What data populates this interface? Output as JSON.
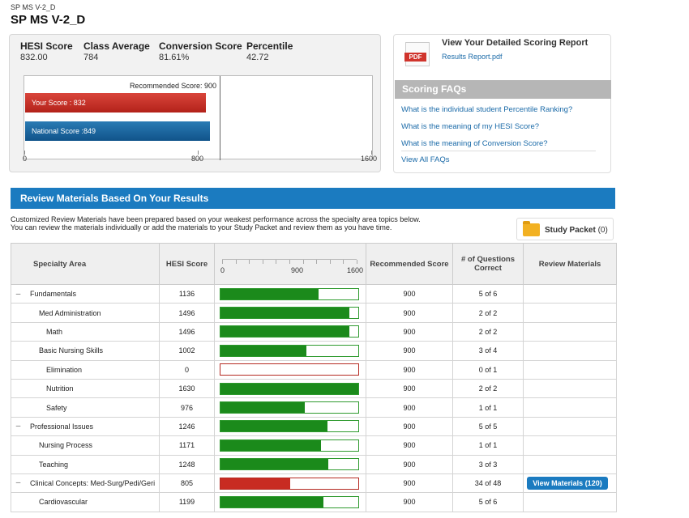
{
  "breadcrumb": "SP MS V-2_D",
  "page_title": "SP MS V-2_D",
  "summary": {
    "metrics": [
      {
        "label": "HESI Score",
        "value": "832.00"
      },
      {
        "label": "Class Average",
        "value": "784"
      },
      {
        "label": "Conversion Score",
        "value": "81.61%"
      },
      {
        "label": "Percentile",
        "value": "42.72"
      }
    ],
    "chart": {
      "recommended_label": "Recommended Score: 900",
      "recommended": 900,
      "your_score_label": "Your Score : 832",
      "your_score": 832,
      "national_score_label": "National Score :849",
      "national_score": 849,
      "axis_min": 0,
      "axis_max": 1600,
      "ticks": [
        "0",
        "800",
        "1600"
      ],
      "colors": {
        "your_score": "#c02a20",
        "national_score": "#1a65a0"
      }
    }
  },
  "report": {
    "pdf_tag": "PDF",
    "title": "View Your Detailed Scoring Report",
    "link": "Results Report.pdf"
  },
  "faqs": {
    "header": "Scoring FAQs",
    "links": [
      "What is the individual student Percentile Ranking?",
      "What is the meaning of my HESI Score?",
      "What is the meaning of Conversion Score?"
    ],
    "view_all": "View All FAQs"
  },
  "review": {
    "header": "Review Materials Based On Your Results",
    "desc_line1": "Customized Review Materials have been prepared based on your weakest performance across the specialty area topics below.",
    "desc_line2": "You can review the materials individually or add the materials to your Study Packet and review them as you have time.",
    "study_packet_label": "Study Packet",
    "study_packet_count": "(0)",
    "columns": {
      "area": "Specialty Area",
      "score": "HESI Score",
      "scale_ticks": [
        "0",
        "900",
        "1600"
      ],
      "recommended": "Recommended Score",
      "questions": "# of Questions Correct",
      "materials": "Review Materials"
    },
    "scale_max": 1600,
    "rows": [
      {
        "toggle": "–",
        "area": "Fundamentals",
        "indent": 0,
        "score": "1136",
        "value": 1136,
        "rec": "900",
        "correct": "5 of 6"
      },
      {
        "toggle": "",
        "area": "Med Administration",
        "indent": 1,
        "score": "1496",
        "value": 1496,
        "rec": "900",
        "correct": "2 of 2"
      },
      {
        "toggle": "",
        "area": "Math",
        "indent": 2,
        "score": "1496",
        "value": 1496,
        "rec": "900",
        "correct": "2 of 2"
      },
      {
        "toggle": "",
        "area": "Basic Nursing Skills",
        "indent": 1,
        "score": "1002",
        "value": 1002,
        "rec": "900",
        "correct": "3 of 4"
      },
      {
        "toggle": "",
        "area": "Elimination",
        "indent": 2,
        "score": "0",
        "value": 0,
        "rec": "900",
        "correct": "0 of 1"
      },
      {
        "toggle": "",
        "area": "Nutrition",
        "indent": 2,
        "score": "1630",
        "value": 1630,
        "rec": "900",
        "correct": "2 of 2"
      },
      {
        "toggle": "",
        "area": "Safety",
        "indent": 2,
        "score": "976",
        "value": 976,
        "rec": "900",
        "correct": "1 of 1"
      },
      {
        "toggle": "–",
        "area": "Professional Issues",
        "indent": 0,
        "score": "1246",
        "value": 1246,
        "rec": "900",
        "correct": "5 of 5"
      },
      {
        "toggle": "",
        "area": "Nursing Process",
        "indent": 1,
        "score": "1171",
        "value": 1171,
        "rec": "900",
        "correct": "1 of 1"
      },
      {
        "toggle": "",
        "area": "Teaching",
        "indent": 1,
        "score": "1248",
        "value": 1248,
        "rec": "900",
        "correct": "3 of 3"
      },
      {
        "toggle": "–",
        "area": "Clinical Concepts: Med-Surg/Pedi/Geri",
        "indent": 0,
        "score": "805",
        "value": 805,
        "rec": "900",
        "correct": "34 of 48",
        "materials_label": "View Materials",
        "materials_count": "(120)"
      },
      {
        "toggle": "",
        "area": "Cardiovascular",
        "indent": 1,
        "score": "1199",
        "value": 1199,
        "rec": "900",
        "correct": "5 of 6"
      }
    ]
  }
}
